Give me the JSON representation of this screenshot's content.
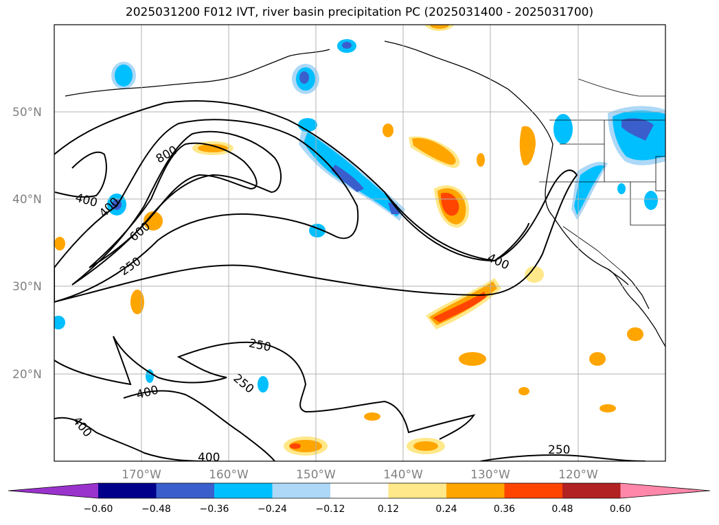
{
  "title": "2025031200 F012 IVT, river basin precipitation PC (2025031400 - 2025031700)",
  "map": {
    "lat_labels": [
      "50°N",
      "40°N",
      "30°N",
      "20°N"
    ],
    "lon_labels": [
      "170°W",
      "160°W",
      "150°W",
      "140°W",
      "130°W",
      "120°W"
    ],
    "ivt_contour_labels": [
      "800",
      "400",
      "400",
      "600",
      "250",
      "400",
      "250",
      "250",
      "400",
      "400",
      "400",
      "250"
    ]
  },
  "colorbar": {
    "tick_labels": [
      "−0.60",
      "−0.48",
      "−0.36",
      "−0.24",
      "−0.12",
      "0.12",
      "0.24",
      "0.36",
      "0.48",
      "0.60"
    ],
    "colors": [
      "#9933cc",
      "#00008b",
      "#3a5fcd",
      "#00bfff",
      "#add8f7",
      "#ffffff",
      "#ffe88a",
      "#ffa500",
      "#ff4500",
      "#b22222",
      "#ff88aa"
    ]
  }
}
